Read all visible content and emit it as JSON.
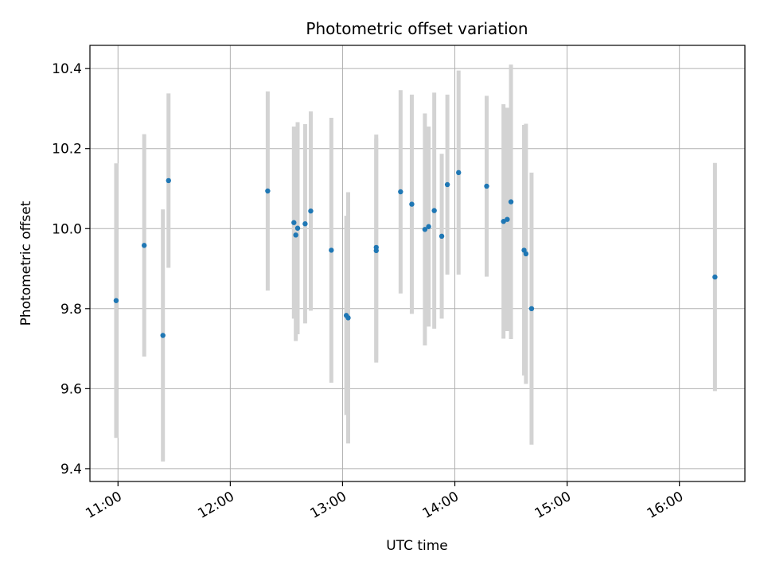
{
  "chart_data": {
    "type": "scatter",
    "title": "Photometric offset variation",
    "xlabel": "UTC time",
    "ylabel": "Photometric offset",
    "x_tick_labels": [
      "11:00",
      "12:00",
      "13:00",
      "14:00",
      "15:00",
      "16:00"
    ],
    "y_tick_labels": [
      "9.4",
      "9.6",
      "9.8",
      "10.0",
      "10.2",
      "10.4"
    ],
    "y_ticks": [
      9.4,
      9.6,
      9.8,
      10.0,
      10.2,
      10.4
    ],
    "xlim": [
      "10:45",
      "16:35"
    ],
    "ylim": [
      9.368,
      10.458
    ],
    "grid": true,
    "point_color": "#1f77b4",
    "errorbar_color": "#d3d3d3",
    "points": [
      {
        "x": "10:59",
        "y": 9.82,
        "err": 0.343
      },
      {
        "x": "11:14",
        "y": 9.958,
        "err": 0.278
      },
      {
        "x": "11:24",
        "y": 9.733,
        "err": 0.315
      },
      {
        "x": "11:27",
        "y": 10.12,
        "err": 0.218
      },
      {
        "x": "12:20",
        "y": 10.094,
        "err": 0.249
      },
      {
        "x": "12:34",
        "y": 10.015,
        "err": 0.24
      },
      {
        "x": "12:35",
        "y": 9.984,
        "err": 0.265
      },
      {
        "x": "12:36",
        "y": 10.001,
        "err": 0.265
      },
      {
        "x": "12:40",
        "y": 10.012,
        "err": 0.249
      },
      {
        "x": "12:43",
        "y": 10.044,
        "err": 0.249
      },
      {
        "x": "12:54",
        "y": 9.946,
        "err": 0.331
      },
      {
        "x": "13:02",
        "y": 9.783,
        "err": 0.249
      },
      {
        "x": "13:03",
        "y": 9.777,
        "err": 0.314
      },
      {
        "x": "13:18",
        "y": 9.953,
        "err": 0.282
      },
      {
        "x": "13:18",
        "y": 9.945,
        "err": 0.28
      },
      {
        "x": "13:31",
        "y": 10.092,
        "err": 0.254
      },
      {
        "x": "13:37",
        "y": 10.061,
        "err": 0.274
      },
      {
        "x": "13:44",
        "y": 9.998,
        "err": 0.29
      },
      {
        "x": "13:46",
        "y": 10.005,
        "err": 0.25
      },
      {
        "x": "13:49",
        "y": 10.045,
        "err": 0.295
      },
      {
        "x": "13:53",
        "y": 9.981,
        "err": 0.206
      },
      {
        "x": "13:56",
        "y": 10.11,
        "err": 0.225
      },
      {
        "x": "14:02",
        "y": 10.14,
        "err": 0.255
      },
      {
        "x": "14:17",
        "y": 10.106,
        "err": 0.226
      },
      {
        "x": "14:26",
        "y": 10.018,
        "err": 0.293
      },
      {
        "x": "14:28",
        "y": 10.023,
        "err": 0.279
      },
      {
        "x": "14:30",
        "y": 10.067,
        "err": 0.343
      },
      {
        "x": "14:37",
        "y": 9.946,
        "err": 0.313
      },
      {
        "x": "14:38",
        "y": 9.937,
        "err": 0.325
      },
      {
        "x": "14:41",
        "y": 9.8,
        "err": 0.34
      },
      {
        "x": "16:19",
        "y": 9.879,
        "err": 0.285
      }
    ]
  }
}
